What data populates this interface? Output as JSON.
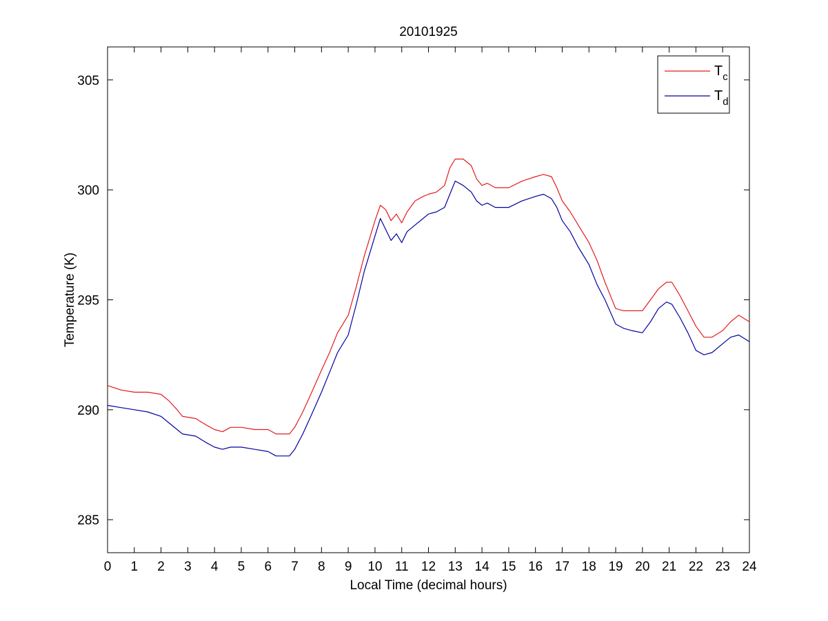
{
  "chart_data": {
    "type": "line",
    "title": "20101925",
    "xlabel": "Local Time (decimal hours)",
    "ylabel": "Temperature (K)",
    "xlim": [
      0,
      24
    ],
    "ylim": [
      283.5,
      306.5
    ],
    "xticks": [
      0,
      1,
      2,
      3,
      4,
      5,
      6,
      7,
      8,
      9,
      10,
      11,
      12,
      13,
      14,
      15,
      16,
      17,
      18,
      19,
      20,
      21,
      22,
      23,
      24
    ],
    "yticks": [
      285,
      290,
      295,
      300,
      305
    ],
    "grid": false,
    "legend_position": "top-right",
    "series": [
      {
        "name": "Tc",
        "legend_main": "T",
        "legend_sub": "c",
        "color": "#e31a1c",
        "x": [
          0,
          0.5,
          1,
          1.5,
          2,
          2.3,
          2.6,
          2.8,
          3.3,
          3.7,
          4.0,
          4.3,
          4.6,
          5.0,
          5.5,
          6.0,
          6.3,
          6.8,
          7.0,
          7.3,
          7.6,
          8.0,
          8.3,
          8.6,
          9.0,
          9.3,
          9.6,
          10.0,
          10.2,
          10.4,
          10.6,
          10.8,
          11.0,
          11.2,
          11.5,
          11.8,
          12.0,
          12.3,
          12.6,
          12.8,
          13.0,
          13.3,
          13.6,
          13.8,
          14.0,
          14.2,
          14.5,
          15.0,
          15.5,
          16.0,
          16.3,
          16.6,
          16.8,
          17.0,
          17.3,
          17.6,
          18.0,
          18.3,
          18.6,
          19.0,
          19.3,
          19.6,
          20.0,
          20.3,
          20.6,
          20.9,
          21.1,
          21.4,
          21.7,
          22.0,
          22.3,
          22.6,
          23.0,
          23.3,
          23.6,
          24.0
        ],
        "values": [
          291.1,
          290.9,
          290.8,
          290.8,
          290.7,
          290.4,
          290.0,
          289.7,
          289.6,
          289.3,
          289.1,
          289.0,
          289.2,
          289.2,
          289.1,
          289.1,
          288.9,
          288.9,
          289.2,
          289.9,
          290.7,
          291.8,
          292.6,
          293.5,
          294.3,
          295.6,
          297.0,
          298.6,
          299.3,
          299.1,
          298.6,
          298.9,
          298.5,
          299.0,
          299.5,
          299.7,
          299.8,
          299.9,
          300.2,
          301.0,
          301.4,
          301.4,
          301.1,
          300.5,
          300.2,
          300.3,
          300.1,
          300.1,
          300.4,
          300.6,
          300.7,
          300.6,
          300.1,
          299.5,
          299.0,
          298.4,
          297.6,
          296.8,
          295.8,
          294.6,
          294.5,
          294.5,
          294.5,
          295.0,
          295.5,
          295.8,
          295.8,
          295.2,
          294.5,
          293.8,
          293.3,
          293.3,
          293.6,
          294.0,
          294.3,
          294.0
        ]
      },
      {
        "name": "Td",
        "legend_main": "T",
        "legend_sub": "d",
        "color": "#0000a0",
        "x": [
          0,
          0.5,
          1,
          1.5,
          2,
          2.3,
          2.6,
          2.8,
          3.3,
          3.7,
          4.0,
          4.3,
          4.6,
          5.0,
          5.5,
          6.0,
          6.3,
          6.8,
          7.0,
          7.3,
          7.6,
          8.0,
          8.3,
          8.6,
          9.0,
          9.3,
          9.6,
          10.0,
          10.2,
          10.4,
          10.6,
          10.8,
          11.0,
          11.2,
          11.5,
          11.8,
          12.0,
          12.3,
          12.6,
          12.8,
          13.0,
          13.3,
          13.6,
          13.8,
          14.0,
          14.2,
          14.5,
          15.0,
          15.5,
          16.0,
          16.3,
          16.6,
          16.8,
          17.0,
          17.3,
          17.6,
          18.0,
          18.3,
          18.6,
          19.0,
          19.3,
          19.6,
          20.0,
          20.3,
          20.6,
          20.9,
          21.1,
          21.4,
          21.7,
          22.0,
          22.3,
          22.6,
          23.0,
          23.3,
          23.6,
          24.0
        ],
        "values": [
          290.2,
          290.1,
          290.0,
          289.9,
          289.7,
          289.4,
          289.1,
          288.9,
          288.8,
          288.5,
          288.3,
          288.2,
          288.3,
          288.3,
          288.2,
          288.1,
          287.9,
          287.9,
          288.2,
          288.9,
          289.7,
          290.8,
          291.7,
          292.6,
          293.4,
          294.8,
          296.3,
          297.9,
          298.7,
          298.2,
          297.7,
          298.0,
          297.6,
          298.1,
          298.4,
          298.7,
          298.9,
          299.0,
          299.2,
          299.8,
          300.4,
          300.2,
          299.9,
          299.5,
          299.3,
          299.4,
          299.2,
          299.2,
          299.5,
          299.7,
          299.8,
          299.6,
          299.2,
          298.6,
          298.1,
          297.4,
          296.6,
          295.7,
          295.0,
          293.9,
          293.7,
          293.6,
          293.5,
          294.0,
          294.6,
          294.9,
          294.8,
          294.2,
          293.5,
          292.7,
          292.5,
          292.6,
          293.0,
          293.3,
          293.4,
          293.1
        ]
      }
    ]
  }
}
